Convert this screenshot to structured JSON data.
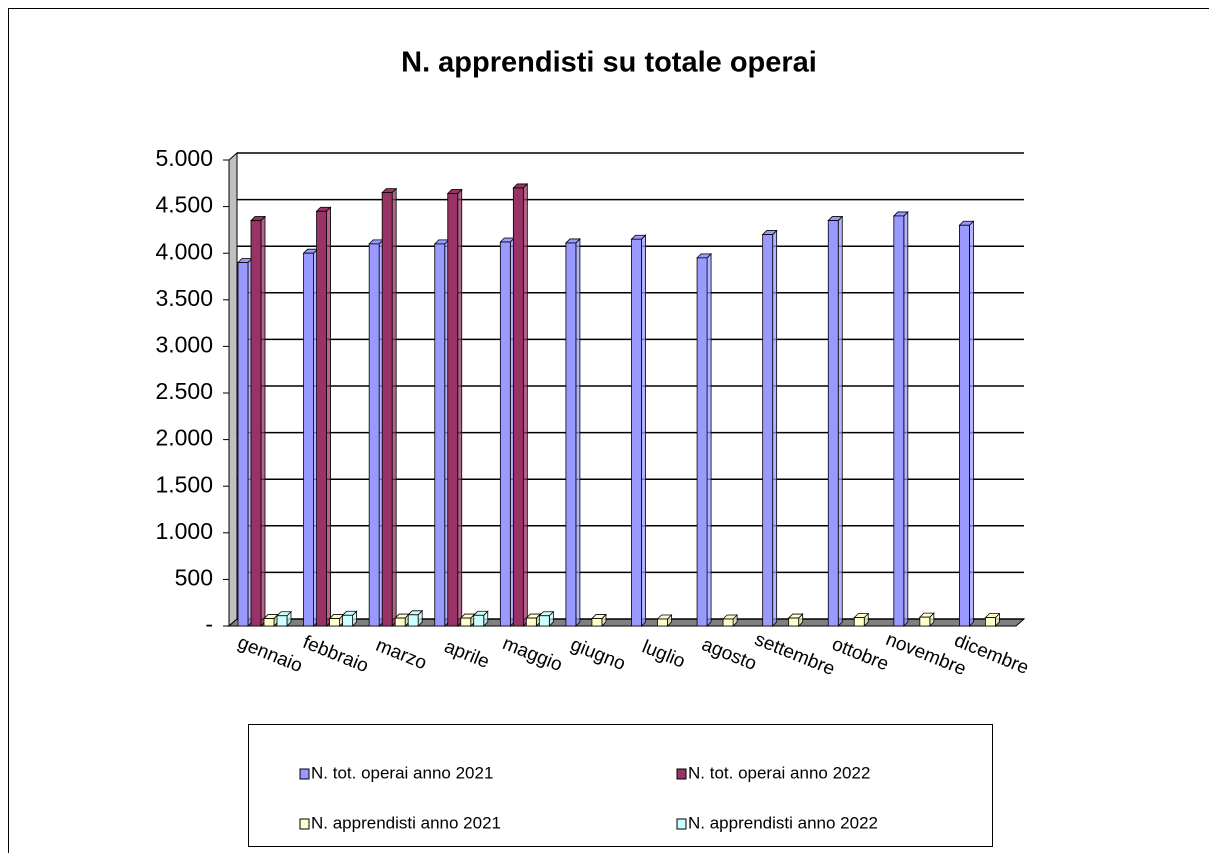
{
  "chart_data": {
    "type": "bar",
    "title": "N. apprendisti su totale operai",
    "categories": [
      "gennaio",
      "febbraio",
      "marzo",
      "aprile",
      "maggio",
      "giugno",
      "luglio",
      "agosto",
      "settembre",
      "ottobre",
      "novembre",
      "dicembre"
    ],
    "series": [
      {
        "name": "N. tot. operai anno 2021",
        "color": "#9999ff",
        "values": [
          3900,
          4000,
          4100,
          4100,
          4120,
          4110,
          4150,
          3950,
          4200,
          4350,
          4400,
          4300
        ]
      },
      {
        "name": "N. tot. operai anno 2022",
        "color": "#993366",
        "values": [
          4350,
          4450,
          4650,
          4640,
          4700,
          null,
          null,
          null,
          null,
          null,
          null,
          null
        ]
      },
      {
        "name": "N. apprendisti anno 2021",
        "color": "#ffffcc",
        "values": [
          80,
          80,
          85,
          85,
          85,
          80,
          75,
          75,
          85,
          90,
          95,
          90
        ]
      },
      {
        "name": "N. apprendisti anno 2022",
        "color": "#ccffff",
        "values": [
          110,
          115,
          120,
          115,
          110,
          null,
          null,
          null,
          null,
          null,
          null,
          null
        ]
      }
    ],
    "ylim": [
      0,
      5000
    ],
    "yticks": [
      {
        "value": 0,
        "label": "-"
      },
      500,
      {
        "value": 1000,
        "label": "1.000"
      },
      {
        "value": 1500,
        "label": "1.500"
      },
      {
        "value": 2000,
        "label": "2.000"
      },
      {
        "value": 2500,
        "label": "2.500"
      },
      {
        "value": 3000,
        "label": "3.000"
      },
      {
        "value": 3500,
        "label": "3.500"
      },
      {
        "value": 4000,
        "label": "4.000"
      },
      {
        "value": 4500,
        "label": "4.500"
      },
      {
        "value": 5000,
        "label": "5.000"
      }
    ],
    "grid": true
  }
}
